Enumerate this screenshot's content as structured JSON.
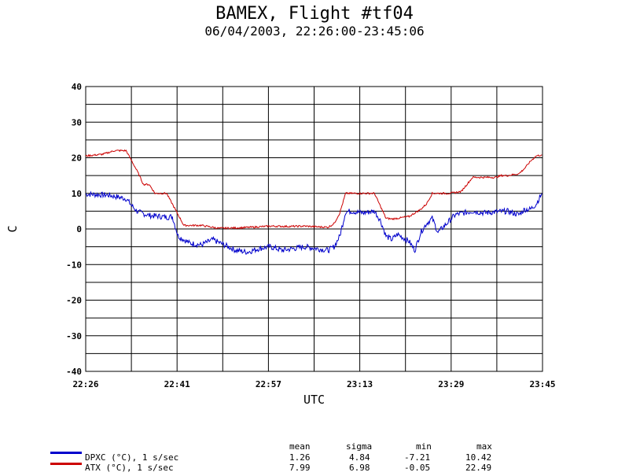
{
  "header": {
    "title": "BAMEX, Flight #tf04",
    "subtitle": "06/04/2003, 22:26:00-23:45:06"
  },
  "chart_data": {
    "type": "line",
    "title": "BAMEX, Flight #tf04",
    "subtitle": "06/04/2003, 22:26:00-23:45:06",
    "xlabel": "UTC",
    "ylabel": "C",
    "x_tick_labels": [
      "22:26",
      "22:41",
      "22:57",
      "23:13",
      "23:29",
      "23:45"
    ],
    "y_tick_labels": [
      "40",
      "30",
      "20",
      "10",
      "0",
      "-10",
      "-20",
      "-30",
      "-40"
    ],
    "ylim": [
      -40,
      40
    ],
    "grid": true,
    "series": [
      {
        "name": "DPXC (°C), 1 s/sec",
        "color": "#0000cc",
        "x": [
          "22:26",
          "22:30",
          "22:33",
          "22:34",
          "22:35",
          "22:37",
          "22:39",
          "22:40",
          "22:41",
          "22:42",
          "22:44",
          "22:46",
          "22:48",
          "22:50",
          "22:52",
          "22:54",
          "22:56",
          "22:58",
          "23:00",
          "23:02",
          "23:04",
          "23:06",
          "23:08",
          "23:09",
          "23:10",
          "23:11",
          "23:12",
          "23:14",
          "23:16",
          "23:17",
          "23:18",
          "23:19",
          "23:20",
          "23:22",
          "23:23",
          "23:24",
          "23:25",
          "23:26",
          "23:27",
          "23:30",
          "23:33",
          "23:35",
          "23:37",
          "23:39",
          "23:41",
          "23:42",
          "23:43",
          "23:44",
          "23:45"
        ],
        "y": [
          9.8,
          9.5,
          8.5,
          6.5,
          4.8,
          3.8,
          3.5,
          3.3,
          3.5,
          -2.0,
          -4.0,
          -4.5,
          -3.0,
          -4.5,
          -6.0,
          -6.5,
          -5.5,
          -5.0,
          -6.0,
          -5.5,
          -5.0,
          -5.5,
          -6.0,
          -5.0,
          -2.0,
          4.8,
          5.0,
          4.5,
          5.0,
          2.5,
          -2.0,
          -3.0,
          -1.5,
          -3.5,
          -6.0,
          -1.0,
          1.5,
          3.0,
          -1.0,
          4.0,
          5.0,
          4.5,
          4.8,
          5.0,
          4.0,
          5.5,
          5.5,
          7.0,
          10.0
        ]
      },
      {
        "name": "ATX (°C), 1 s/sec",
        "color": "#cc0000",
        "x": [
          "22:26",
          "22:29",
          "22:31",
          "22:33",
          "22:34",
          "22:35",
          "22:36",
          "22:37",
          "22:38",
          "22:39",
          "22:40",
          "22:41",
          "22:43",
          "22:46",
          "22:49",
          "22:52",
          "22:55",
          "22:58",
          "23:01",
          "23:04",
          "23:06",
          "23:08",
          "23:09",
          "23:10",
          "23:11",
          "23:13",
          "23:16",
          "23:17",
          "23:18",
          "23:19",
          "23:20",
          "23:22",
          "23:24",
          "23:25",
          "23:26",
          "23:29",
          "23:31",
          "23:32",
          "23:33",
          "23:34",
          "23:37",
          "23:38",
          "23:39",
          "23:41",
          "23:42",
          "23:43",
          "23:44",
          "23:45"
        ],
        "y": [
          20.5,
          21.0,
          22.0,
          22.0,
          19.0,
          16.0,
          12.5,
          12.5,
          10.0,
          10.0,
          10.0,
          7.0,
          1.0,
          1.0,
          0.2,
          0.3,
          0.5,
          0.8,
          0.7,
          0.8,
          0.6,
          0.5,
          1.5,
          4.5,
          10.0,
          10.0,
          10.0,
          6.5,
          3.0,
          2.8,
          3.0,
          3.5,
          5.5,
          7.0,
          10.0,
          10.0,
          10.5,
          12.5,
          14.5,
          14.5,
          14.5,
          15.0,
          15.0,
          15.5,
          17.0,
          19.0,
          20.5,
          20.8
        ]
      }
    ]
  },
  "stats": {
    "headers": [
      "mean",
      "sigma",
      "min",
      "max"
    ],
    "rows": [
      {
        "label": "DPXC (°C), 1 s/sec",
        "mean": "1.26",
        "sigma": "4.84",
        "min": "-7.21",
        "max": "10.42",
        "color": "#0000cc"
      },
      {
        "label": "ATX (°C), 1 s/sec",
        "mean": "7.99",
        "sigma": "6.98",
        "min": "-0.05",
        "max": "22.49",
        "color": "#cc0000"
      }
    ]
  }
}
